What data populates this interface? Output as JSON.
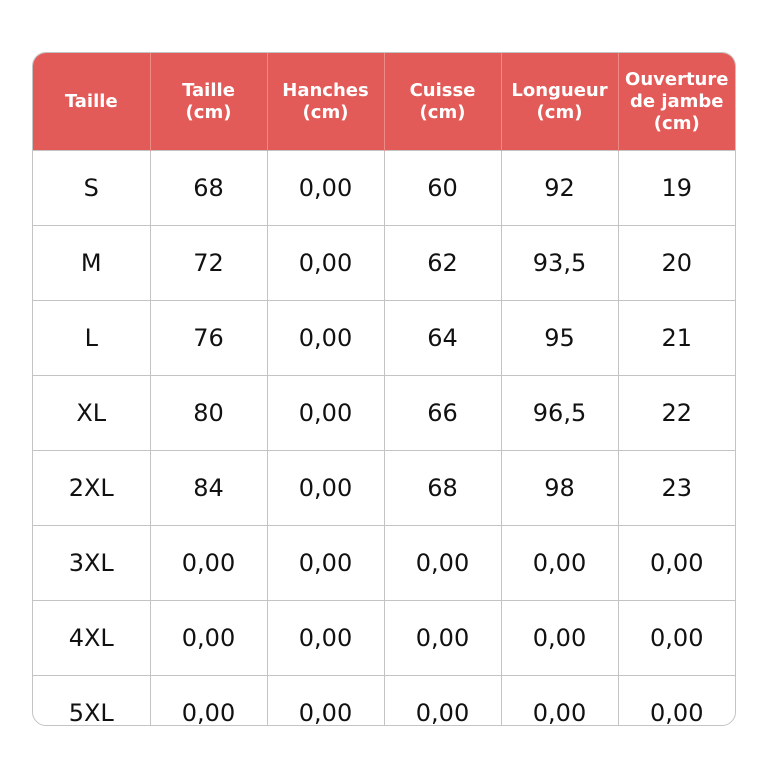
{
  "header_color": "#e35b58",
  "columns": [
    {
      "line1": "Taille",
      "line2": "",
      "line3": ""
    },
    {
      "line1": "Taille",
      "line2": "(cm)",
      "line3": ""
    },
    {
      "line1": "Hanches",
      "line2": "(cm)",
      "line3": ""
    },
    {
      "line1": "Cuisse",
      "line2": "(cm)",
      "line3": ""
    },
    {
      "line1": "Longueur",
      "line2": "(cm)",
      "line3": ""
    },
    {
      "line1": "Ouverture",
      "line2": "de jambe",
      "line3": "(cm)"
    }
  ],
  "rows": [
    [
      "S",
      "68",
      "0,00",
      "60",
      "92",
      "19"
    ],
    [
      "M",
      "72",
      "0,00",
      "62",
      "93,5",
      "20"
    ],
    [
      "L",
      "76",
      "0,00",
      "64",
      "95",
      "21"
    ],
    [
      "XL",
      "80",
      "0,00",
      "66",
      "96,5",
      "22"
    ],
    [
      "2XL",
      "84",
      "0,00",
      "68",
      "98",
      "23"
    ],
    [
      "3XL",
      "0,00",
      "0,00",
      "0,00",
      "0,00",
      "0,00"
    ],
    [
      "4XL",
      "0,00",
      "0,00",
      "0,00",
      "0,00",
      "0,00"
    ],
    [
      "5XL",
      "0,00",
      "0,00",
      "0,00",
      "0,00",
      "0,00"
    ]
  ]
}
